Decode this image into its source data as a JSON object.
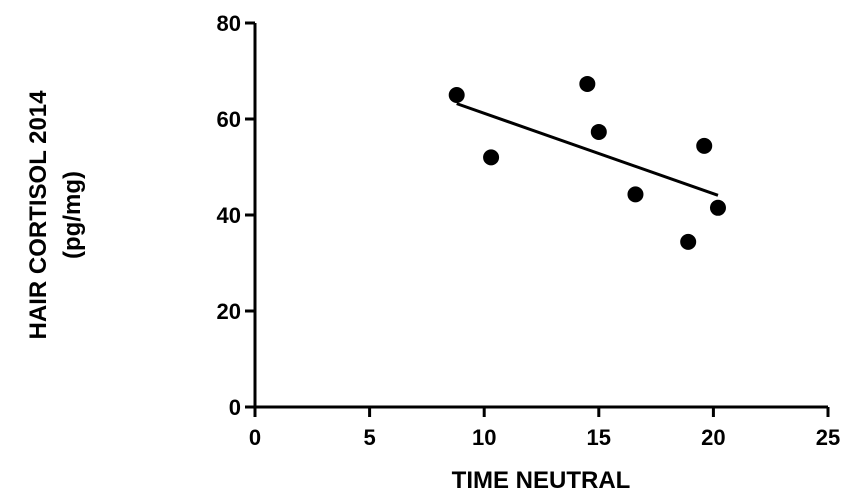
{
  "chart_data": {
    "type": "scatter",
    "title": "",
    "xlabel": "TIME NEUTRAL",
    "ylabel_lines": [
      "HAIR CORTISOL 2014",
      "(pg/mg)"
    ],
    "xlim": [
      0,
      25
    ],
    "ylim": [
      0,
      80
    ],
    "xticks": [
      0,
      5,
      10,
      15,
      20,
      25
    ],
    "yticks": [
      0,
      20,
      40,
      60,
      80
    ],
    "grid": false,
    "legend": "none",
    "series": [
      {
        "points": [
          {
            "x": 8.8,
            "y": 65
          },
          {
            "x": 10.3,
            "y": 52
          },
          {
            "x": 14.5,
            "y": 67.3
          },
          {
            "x": 15.0,
            "y": 57.3
          },
          {
            "x": 16.6,
            "y": 44.3
          },
          {
            "x": 18.9,
            "y": 34.4
          },
          {
            "x": 19.6,
            "y": 54.4
          },
          {
            "x": 20.2,
            "y": 41.5
          }
        ],
        "color": "#000000"
      }
    ],
    "trendline": {
      "x": [
        8.8,
        20.2
      ],
      "y": [
        63.2,
        44.1
      ],
      "color": "#000000"
    }
  }
}
